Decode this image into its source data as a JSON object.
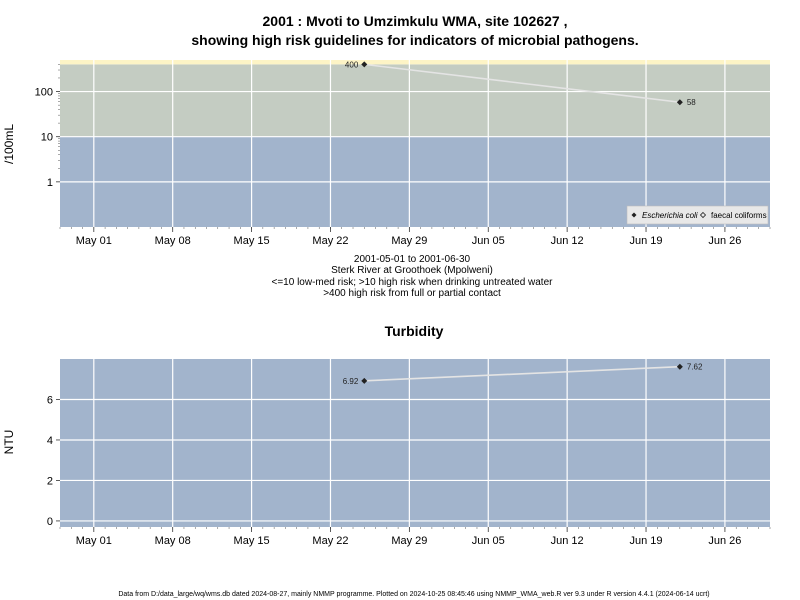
{
  "title_line1": "2001 : Mvoti to Umzimkulu WMA, site 102627 ,",
  "title_line2": "showing high risk guidelines for indicators of microbial pathogens.",
  "subtitle_lines": [
    "2001-05-01 to 2001-06-30",
    "Sterk River at Groothoek (Mpolweni)",
    "<=10 low-med risk; >10 high risk when drinking untreated water",
    ">400 high risk from full or partial contact"
  ],
  "footer": "Data from D:/data_large/wq/wms.db dated 2024-08-27, mainly NMMP programme. Plotted on 2024-10-25 08:45:46 using NMMP_WMA_web.R ver 9.3 under R version 4.4.1 (2024-06-14 ucrt)",
  "colors": {
    "low_zone": "#a2b4cc",
    "mid_zone": "#c4ccc2",
    "high_zone": "#fdf4c6",
    "grid": "#ffffff",
    "line": "#e4e4e4",
    "point": "#222222"
  },
  "chart_data": [
    {
      "id": "microbial",
      "type": "line",
      "title": "",
      "ylabel": "/100mL",
      "yscale": "log",
      "x_ticks": [
        "May 01",
        "May 08",
        "May 15",
        "May 22",
        "May 29",
        "Jun 05",
        "Jun 12",
        "Jun 19",
        "Jun 26"
      ],
      "y_ticks": [
        "1",
        "10",
        "100"
      ],
      "y_tick_values": [
        1,
        10,
        100
      ],
      "thresholds": [
        10,
        400
      ],
      "xlim": [
        "2001-04-28",
        "2001-06-30"
      ],
      "ylim": [
        0.1,
        500
      ],
      "legend": {
        "position": "bottom-right",
        "entries": [
          "Escherichia coli",
          "faecal coliforms"
        ]
      },
      "series": [
        {
          "name": "Escherichia coli",
          "points": [
            {
              "x": "2001-05-25",
              "y": 400,
              "label": "400"
            },
            {
              "x": "2001-06-22",
              "y": 58,
              "label": "58"
            }
          ]
        }
      ]
    },
    {
      "id": "turbidity",
      "type": "line",
      "title": "Turbidity",
      "ylabel": "NTU",
      "yscale": "linear",
      "x_ticks": [
        "May 01",
        "May 08",
        "May 15",
        "May 22",
        "May 29",
        "Jun 05",
        "Jun 12",
        "Jun 19",
        "Jun 26"
      ],
      "y_ticks": [
        "0",
        "2",
        "4",
        "6"
      ],
      "y_tick_values": [
        0,
        2,
        4,
        6
      ],
      "xlim": [
        "2001-04-28",
        "2001-06-30"
      ],
      "ylim": [
        -0.3,
        8.0
      ],
      "series": [
        {
          "name": "",
          "points": [
            {
              "x": "2001-05-25",
              "y": 6.92,
              "label": "6.92"
            },
            {
              "x": "2001-06-22",
              "y": 7.62,
              "label": "7.62"
            }
          ]
        }
      ]
    }
  ]
}
